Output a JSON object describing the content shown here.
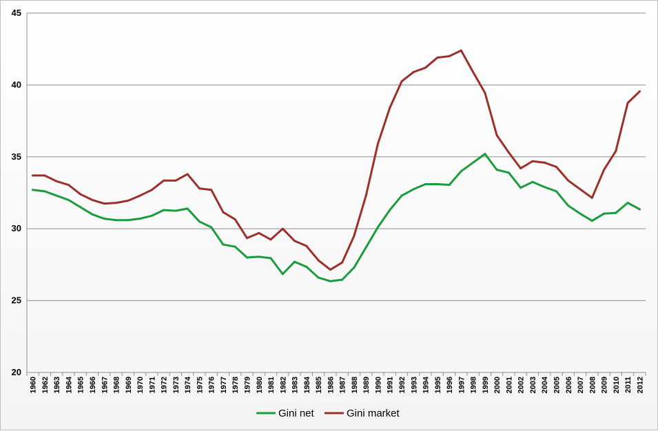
{
  "chart_data": {
    "type": "line",
    "title": "",
    "xlabel": "",
    "ylabel": "",
    "ylim": [
      20,
      45
    ],
    "yticks": [
      20,
      25,
      30,
      35,
      40,
      45
    ],
    "grid": "horizontal",
    "legend_position": "bottom",
    "categories": [
      "1960",
      "1962",
      "1963",
      "1964",
      "1965",
      "1966",
      "1967",
      "1968",
      "1969",
      "1970",
      "1971",
      "1972",
      "1973",
      "1974",
      "1975",
      "1976",
      "1977",
      "1978",
      "1979",
      "1980",
      "1981",
      "1982",
      "1983",
      "1984",
      "1985",
      "1986",
      "1987",
      "1988",
      "1989",
      "1990",
      "1991",
      "1992",
      "1993",
      "1994",
      "1995",
      "1996",
      "1997",
      "1998",
      "1999",
      "2000",
      "2001",
      "2002",
      "2003",
      "2004",
      "2005",
      "2006",
      "2007",
      "2008",
      "2009",
      "2010",
      "2011",
      "2012"
    ],
    "series": [
      {
        "name": "Gini net",
        "color": "#1a9c3c",
        "values": [
          32.7,
          32.6,
          32.3,
          32.0,
          31.5,
          31.0,
          30.7,
          30.6,
          30.6,
          30.7,
          30.9,
          31.3,
          31.25,
          31.4,
          30.5,
          30.1,
          28.9,
          28.75,
          28.0,
          28.05,
          27.95,
          26.85,
          27.7,
          27.35,
          26.6,
          26.35,
          26.45,
          27.3,
          28.7,
          30.1,
          31.3,
          32.3,
          32.75,
          33.1,
          33.1,
          33.05,
          34.0,
          34.6,
          35.2,
          34.1,
          33.9,
          32.85,
          33.25,
          32.9,
          32.6,
          31.6,
          31.05,
          30.55,
          31.05,
          31.1,
          31.8,
          31.35
        ]
      },
      {
        "name": "Gini market",
        "color": "#9b2f2a",
        "values": [
          33.7,
          33.7,
          33.3,
          33.05,
          32.4,
          32.0,
          31.75,
          31.8,
          31.95,
          32.3,
          32.7,
          33.35,
          33.35,
          33.8,
          32.8,
          32.7,
          31.15,
          30.65,
          29.35,
          29.7,
          29.25,
          30.0,
          29.15,
          28.8,
          27.8,
          27.15,
          27.65,
          29.5,
          32.3,
          35.9,
          38.4,
          40.25,
          40.9,
          41.2,
          41.9,
          42.0,
          42.4,
          40.9,
          39.45,
          36.5,
          35.3,
          34.2,
          34.7,
          34.6,
          34.3,
          33.35,
          32.75,
          32.15,
          34.1,
          35.4,
          38.75,
          39.55
        ]
      }
    ]
  }
}
